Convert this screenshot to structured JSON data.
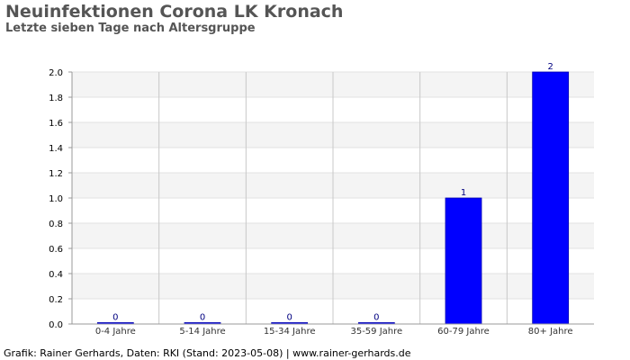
{
  "header": {
    "title": "Neuinfektionen Corona LK Kronach",
    "subtitle": "Letzte sieben Tage nach Altersgruppe"
  },
  "footer": {
    "credit": "Grafik: Rainer Gerhards, Daten: RKI (Stand: 2023-05-08) | www.rainer-gerhards.de"
  },
  "chart_data": {
    "type": "bar",
    "title": "Neuinfektionen Corona LK Kronach",
    "subtitle": "Letzte sieben Tage nach Altersgruppe",
    "categories": [
      "0-4 Jahre",
      "5-14 Jahre",
      "15-34 Jahre",
      "35-59 Jahre",
      "60-79 Jahre",
      "80+ Jahre"
    ],
    "values": [
      0,
      0,
      0,
      0,
      1,
      2
    ],
    "data_labels": [
      "0",
      "0",
      "0",
      "0",
      "1",
      "2"
    ],
    "ylim": [
      0,
      2.0
    ],
    "yticks": [
      "0.0",
      "0.2",
      "0.4",
      "0.6",
      "0.8",
      "1.0",
      "1.2",
      "1.4",
      "1.6",
      "1.8",
      "2.0"
    ],
    "xlabel": "",
    "ylabel": "",
    "grid": true,
    "bar_color": "#0000ff",
    "legend": "none"
  }
}
